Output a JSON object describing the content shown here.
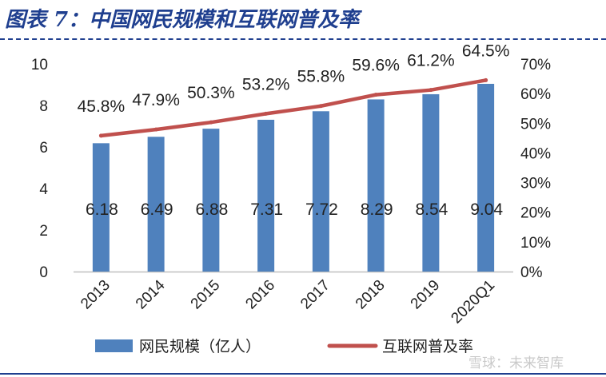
{
  "figure_title": "图表 7：中国网民规模和互联网普及率",
  "watermark": "雪球：未来智库",
  "chart_data": {
    "type": "bar",
    "categories": [
      "2013",
      "2014",
      "2015",
      "2016",
      "2017",
      "2018",
      "2019",
      "2020Q1"
    ],
    "series": [
      {
        "name": "网民规模（亿人）",
        "type": "bar",
        "axis": "left",
        "values": [
          6.18,
          6.49,
          6.88,
          7.31,
          7.72,
          8.29,
          8.54,
          9.04
        ],
        "labels": [
          "6.18",
          "6.49",
          "6.88",
          "7.31",
          "7.72",
          "8.29",
          "8.54",
          "9.04"
        ],
        "color": "#4f81bd"
      },
      {
        "name": "互联网普及率",
        "type": "line",
        "axis": "right",
        "values": [
          45.8,
          47.9,
          50.3,
          53.2,
          55.8,
          59.6,
          61.2,
          64.5
        ],
        "labels": [
          "45.8%",
          "47.9%",
          "50.3%",
          "53.2%",
          "55.8%",
          "59.6%",
          "61.2%",
          "64.5%"
        ],
        "color": "#c0504d"
      }
    ],
    "ylim_left": [
      0,
      10
    ],
    "ylim_right": [
      0,
      70
    ],
    "yticks_left": [
      "0",
      "2",
      "4",
      "6",
      "8",
      "10"
    ],
    "yticks_right": [
      "0%",
      "10%",
      "20%",
      "30%",
      "40%",
      "50%",
      "60%",
      "70%"
    ],
    "grid": false,
    "legend_position": "bottom"
  }
}
